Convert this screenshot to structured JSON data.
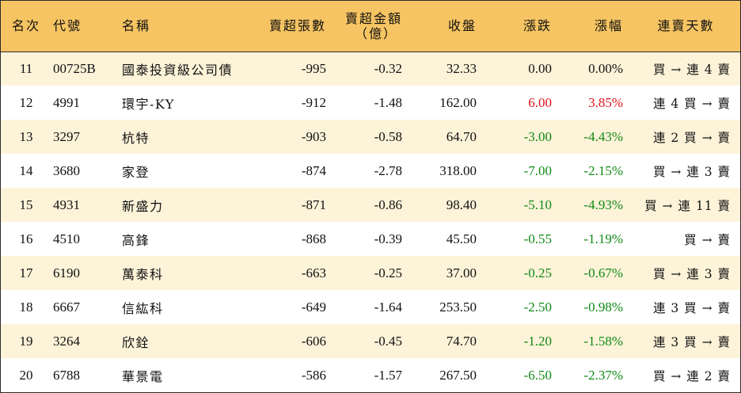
{
  "headers": {
    "rank": "名次",
    "code": "代號",
    "name": "名稱",
    "net_sell_volume": "賣超張數",
    "net_sell_amount_line1": "賣超金額",
    "net_sell_amount_line2": "（億）",
    "close": "收盤",
    "change": "漲跌",
    "change_pct": "漲幅",
    "consecutive_days": "連賣天數"
  },
  "colors": {
    "header_bg": "#f6c462",
    "odd_row_bg": "#fdf3d9",
    "even_row_bg": "#ffffff",
    "up": "#e0111b",
    "down": "#128a15"
  },
  "rows": [
    {
      "rank": "11",
      "code": "00725B",
      "name": "國泰投資級公司債",
      "volume": "-995",
      "amount": "-0.32",
      "close": "32.33",
      "change": "0.00",
      "pct": "0.00%",
      "days": "買 → 連 4 賣",
      "dir": "flat"
    },
    {
      "rank": "12",
      "code": "4991",
      "name": "環宇-KY",
      "volume": "-912",
      "amount": "-1.48",
      "close": "162.00",
      "change": "6.00",
      "pct": "3.85%",
      "days": "連 4 買 → 賣",
      "dir": "up"
    },
    {
      "rank": "13",
      "code": "3297",
      "name": "杭特",
      "volume": "-903",
      "amount": "-0.58",
      "close": "64.70",
      "change": "-3.00",
      "pct": "-4.43%",
      "days": "連 2 買 → 賣",
      "dir": "down"
    },
    {
      "rank": "14",
      "code": "3680",
      "name": "家登",
      "volume": "-874",
      "amount": "-2.78",
      "close": "318.00",
      "change": "-7.00",
      "pct": "-2.15%",
      "days": "買 → 連 3 賣",
      "dir": "down"
    },
    {
      "rank": "15",
      "code": "4931",
      "name": "新盛力",
      "volume": "-871",
      "amount": "-0.86",
      "close": "98.40",
      "change": "-5.10",
      "pct": "-4.93%",
      "days": "買 → 連 11 賣",
      "dir": "down"
    },
    {
      "rank": "16",
      "code": "4510",
      "name": "高鋒",
      "volume": "-868",
      "amount": "-0.39",
      "close": "45.50",
      "change": "-0.55",
      "pct": "-1.19%",
      "days": "買 → 賣",
      "dir": "down"
    },
    {
      "rank": "17",
      "code": "6190",
      "name": "萬泰科",
      "volume": "-663",
      "amount": "-0.25",
      "close": "37.00",
      "change": "-0.25",
      "pct": "-0.67%",
      "days": "買 → 連 3 賣",
      "dir": "down"
    },
    {
      "rank": "18",
      "code": "6667",
      "name": "信紘科",
      "volume": "-649",
      "amount": "-1.64",
      "close": "253.50",
      "change": "-2.50",
      "pct": "-0.98%",
      "days": "連 3 買 → 賣",
      "dir": "down"
    },
    {
      "rank": "19",
      "code": "3264",
      "name": "欣銓",
      "volume": "-606",
      "amount": "-0.45",
      "close": "74.70",
      "change": "-1.20",
      "pct": "-1.58%",
      "days": "連 3 買 → 賣",
      "dir": "down"
    },
    {
      "rank": "20",
      "code": "6788",
      "name": "華景電",
      "volume": "-586",
      "amount": "-1.57",
      "close": "267.50",
      "change": "-6.50",
      "pct": "-2.37%",
      "days": "買 → 連 2 賣",
      "dir": "down"
    }
  ]
}
